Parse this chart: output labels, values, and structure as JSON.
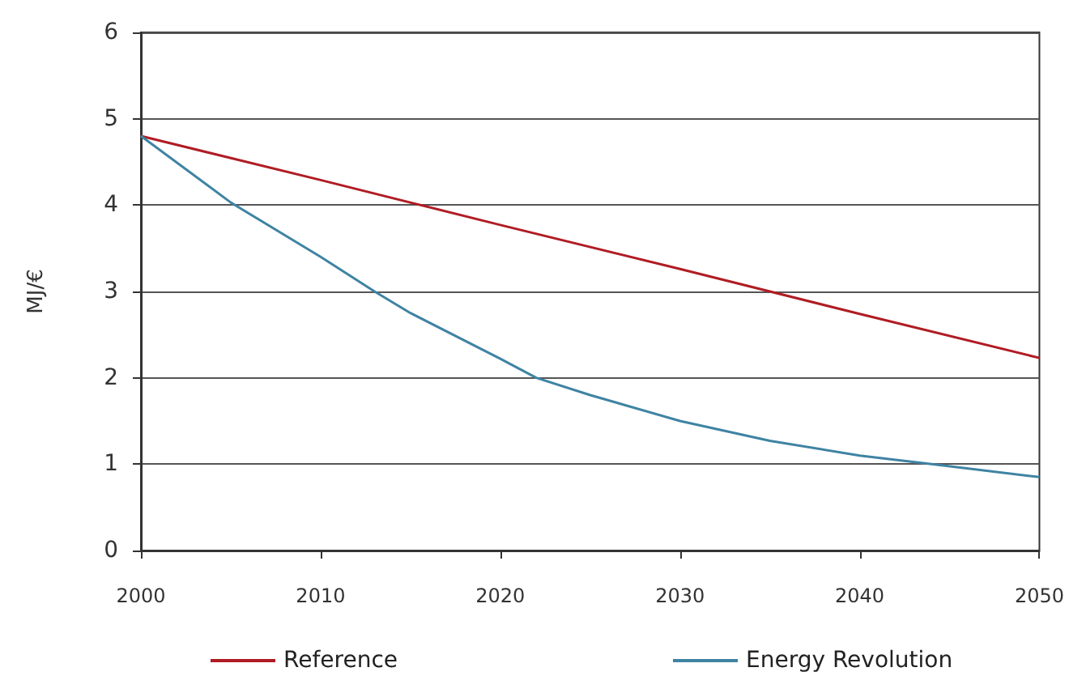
{
  "chart_data": {
    "type": "line",
    "ylabel": "MJ/€",
    "x": [
      2000,
      2005,
      2010,
      2013,
      2015,
      2020,
      2022,
      2025,
      2030,
      2035,
      2040,
      2044,
      2050
    ],
    "series": [
      {
        "name": "Reference",
        "color": "#b01c24",
        "x": [
          2000,
          2010,
          2020,
          2030,
          2040,
          2050
        ],
        "values": [
          4.8,
          4.29,
          3.77,
          3.26,
          2.74,
          2.23
        ]
      },
      {
        "name": "Energy Revolution",
        "color": "#3f83a3",
        "values": [
          4.8,
          4.03,
          3.4,
          3.0,
          2.75,
          2.22,
          2.0,
          1.8,
          1.5,
          1.27,
          1.1,
          1.0,
          0.85
        ]
      }
    ],
    "xlim": [
      2000,
      2050
    ],
    "xticks": [
      2000,
      2010,
      2020,
      2030,
      2040,
      2050
    ],
    "ylim": [
      0,
      6
    ],
    "yticks": [
      0,
      1,
      2,
      3,
      4,
      5,
      6
    ],
    "grid": "y",
    "legend": "bottom",
    "marker": "none",
    "line_style": "solid"
  }
}
